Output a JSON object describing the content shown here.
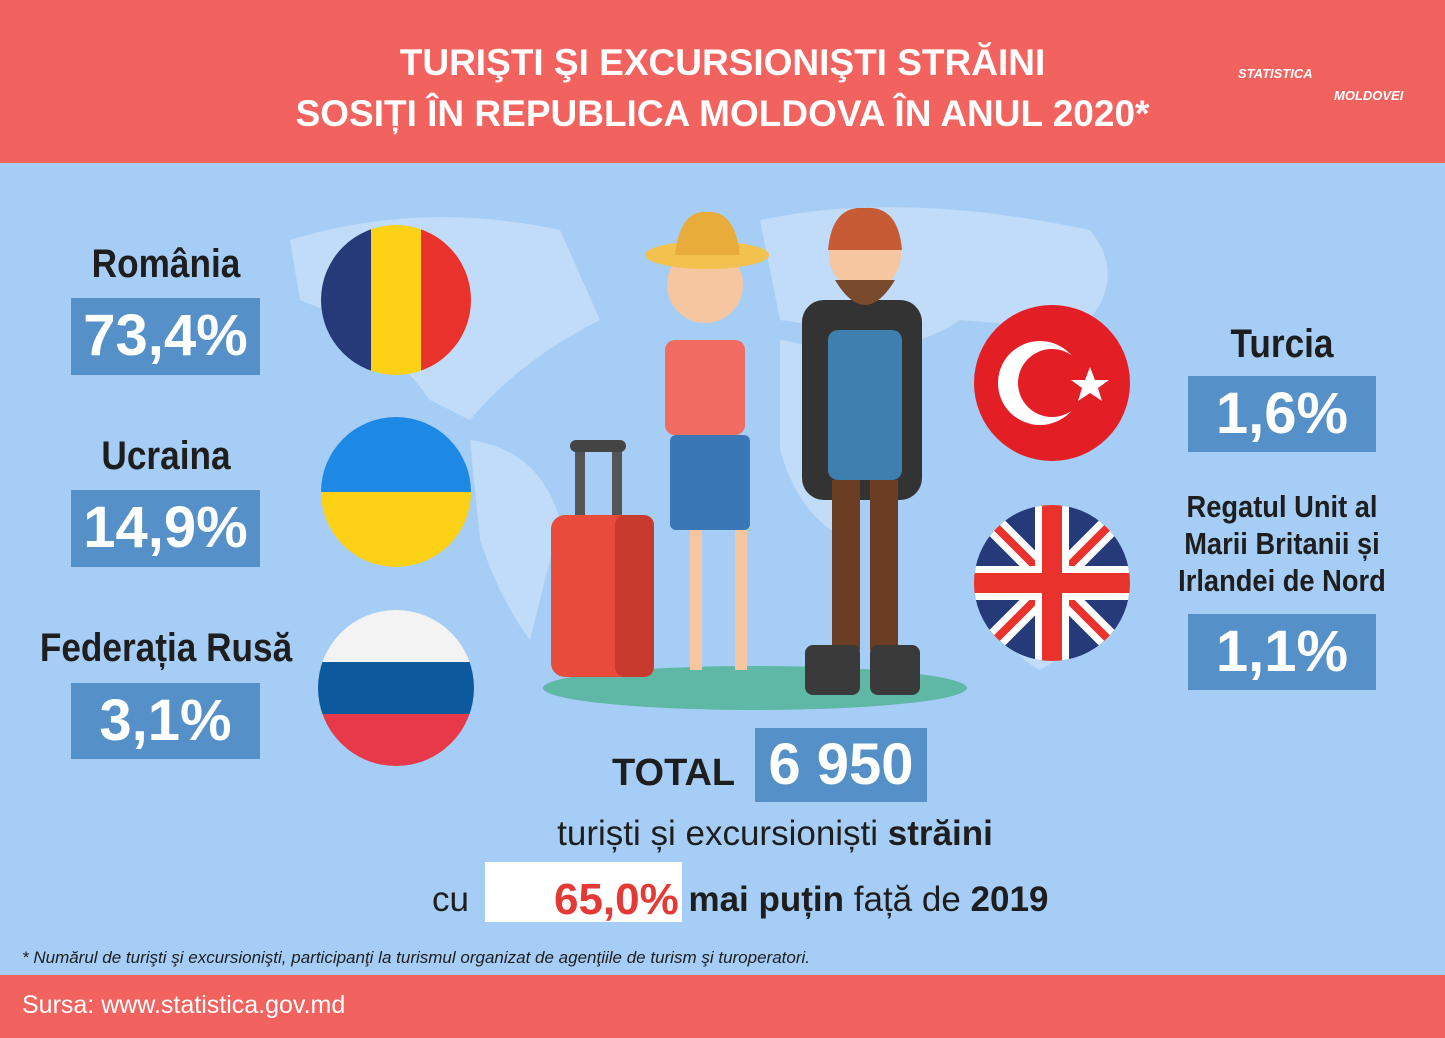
{
  "header": {
    "title_lines": [
      "TURIŞTI ŞI EXCURSIONIŞTI  STRĂINI",
      "SOSIȚI ÎN REPUBLICA MOLDOVA ÎN ANUL 2020*"
    ],
    "logo": [
      "STATISTICA",
      "MOLDOVEI"
    ]
  },
  "countries": [
    {
      "name": "România",
      "share": "73,4%"
    },
    {
      "name": "Ucraina",
      "share": "14,9%"
    },
    {
      "name": "Federația Rusă",
      "share": "3,1%"
    },
    {
      "name": "Turcia",
      "share": "1,6%"
    },
    {
      "name": "Regatul Unit al Marii Britanii și Irlandei de Nord",
      "share": "1,1%"
    }
  ],
  "total": {
    "label": "TOTAL",
    "value": "6 950",
    "line1": [
      "turiști și excursioniști",
      "străini"
    ],
    "line2": [
      "cu",
      "65,0%",
      "mai puțin",
      "față de",
      "2019"
    ]
  },
  "footnote": "* Numărul de turişti şi excursionişti, participanţi la turismul organizat de agenţiile de turism şi turoperatori.",
  "source": "Sursa: www.statistica.gov.md"
}
